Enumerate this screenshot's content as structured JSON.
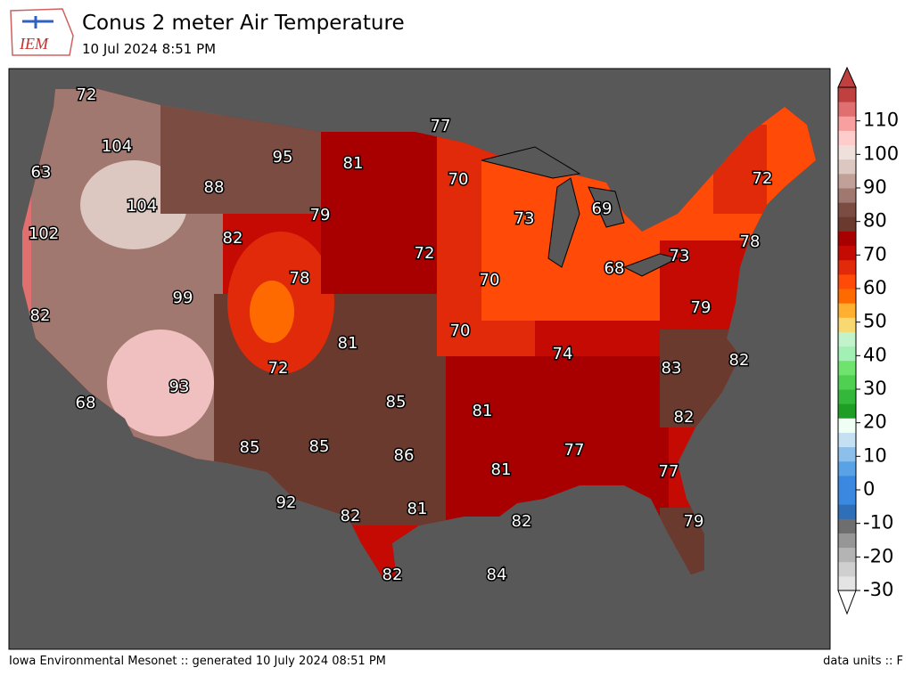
{
  "header": {
    "logo_text": "IEM",
    "title": "Conus 2 meter Air Temperature",
    "subtitle": "10 Jul 2024 8:51 PM"
  },
  "map": {
    "labels": [
      72,
      104,
      63,
      95,
      81,
      77,
      88,
      104,
      70,
      72,
      73,
      69,
      79,
      102,
      82,
      72,
      78,
      68,
      73,
      78,
      70,
      99,
      79,
      82,
      70,
      81,
      74,
      72,
      83,
      82,
      93,
      68,
      85,
      81,
      82,
      85,
      85,
      86,
      77,
      81,
      77,
      92,
      82,
      81,
      82,
      79,
      82,
      84
    ]
  },
  "colorbar": {
    "range": [
      -30,
      120
    ],
    "ticks": [
      -30,
      -20,
      -10,
      0,
      10,
      20,
      30,
      40,
      50,
      60,
      70,
      80,
      90,
      100,
      110
    ],
    "colors": [
      "#e4e4e4",
      "#cfcfcf",
      "#b4b4b4",
      "#969696",
      "#6e6e6e",
      "#2f6fb8",
      "#3a88e0",
      "#3a88e0",
      "#5aa2e6",
      "#8cc0ea",
      "#c4e0f2",
      "#f0fff4",
      "#1e9e24",
      "#34b83c",
      "#50d050",
      "#6ee46e",
      "#a2f0b4",
      "#c2f4cc",
      "#f8d870",
      "#ffb030",
      "#ff6a00",
      "#ff4a08",
      "#e02a0a",
      "#c40a02",
      "#a80000",
      "#6a3a2e",
      "#7a4c42",
      "#a07870",
      "#c0a098",
      "#dcc8c0",
      "#f0e0dc",
      "#ffcccc",
      "#f8a0a0",
      "#e07070",
      "#c04040"
    ]
  },
  "footer": {
    "left": "Iowa Environmental Mesonet :: generated 10 July 2024 08:51 PM",
    "right": "data units :: F"
  }
}
